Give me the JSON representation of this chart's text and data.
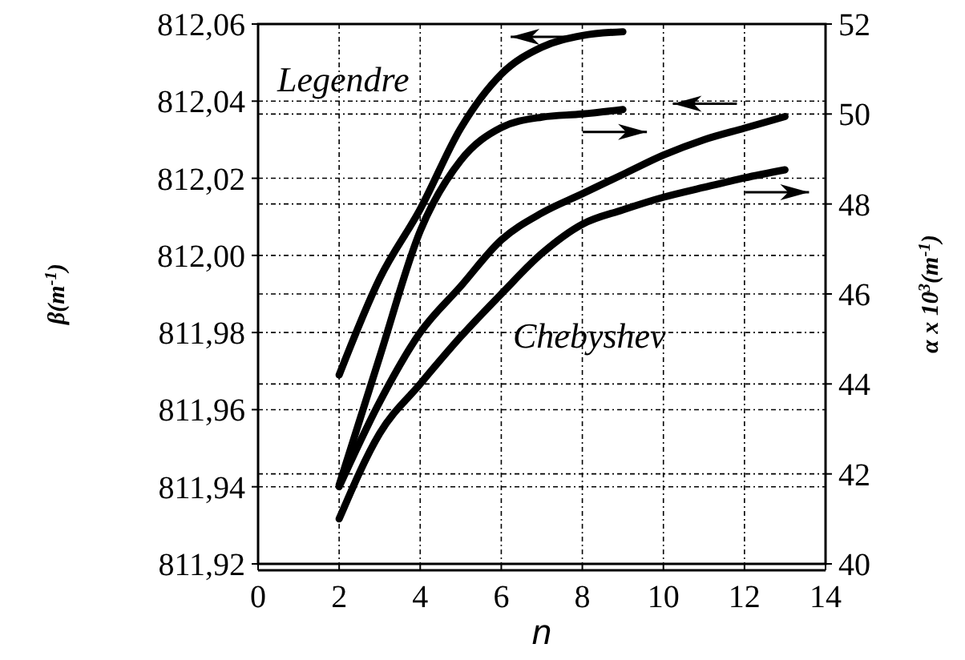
{
  "chart_data": {
    "type": "line",
    "xlabel": "n",
    "ylabel": "β(m$^{-1}$)",
    "y2label": "α x 10$^{3}$(m$^{-1}$)",
    "xlim": [
      0,
      14
    ],
    "xticks": [
      0,
      2,
      4,
      6,
      8,
      10,
      12,
      14
    ],
    "ylim": [
      811.92,
      812.06
    ],
    "yticks": [
      {
        "value": 811.92,
        "label": "811,92"
      },
      {
        "value": 811.94,
        "label": "811,94"
      },
      {
        "value": 811.96,
        "label": "811,96"
      },
      {
        "value": 811.98,
        "label": "811,98"
      },
      {
        "value": 812.0,
        "label": "812,00"
      },
      {
        "value": 812.02,
        "label": "812,02"
      },
      {
        "value": 812.04,
        "label": "812,04"
      },
      {
        "value": 812.06,
        "label": "812,06"
      }
    ],
    "y2lim": [
      40,
      52
    ],
    "y2ticks": [
      40,
      42,
      44,
      46,
      48,
      50,
      52
    ],
    "grid": true,
    "marker": "none",
    "line_style": "solid",
    "series": [
      {
        "color": "#000000",
        "axis": "y",
        "x": [
          2,
          3,
          4,
          5,
          6,
          7,
          8,
          9
        ],
        "values": [
          811.969,
          811.994,
          812.012,
          812.033,
          812.047,
          812.054,
          812.057,
          812.058
        ]
      },
      {
        "color": "#000000",
        "axis": "y2",
        "x": [
          2,
          3,
          4,
          5,
          6,
          7,
          8,
          9
        ],
        "values": [
          41.75,
          44.6,
          47.4,
          48.97,
          49.7,
          49.93,
          50.0,
          50.1
        ]
      },
      {
        "color": "#000000",
        "axis": "y",
        "x": [
          2,
          3,
          4,
          5,
          6,
          7,
          8,
          9,
          10,
          11,
          12,
          13
        ],
        "values": [
          811.94,
          811.962,
          811.98,
          811.992,
          812.004,
          812.011,
          812.016,
          812.021,
          812.026,
          812.03,
          812.033,
          812.036
        ]
      },
      {
        "color": "#000000",
        "axis": "y2",
        "x": [
          2,
          3,
          4,
          5,
          6,
          7,
          8,
          9,
          10,
          11,
          12,
          13
        ],
        "values": [
          41.0,
          42.9,
          44.0,
          45.05,
          46.0,
          46.9,
          47.55,
          47.87,
          48.15,
          48.37,
          48.58,
          48.76
        ]
      }
    ],
    "annotations": [
      "Legendre",
      "Chebyshev"
    ]
  }
}
